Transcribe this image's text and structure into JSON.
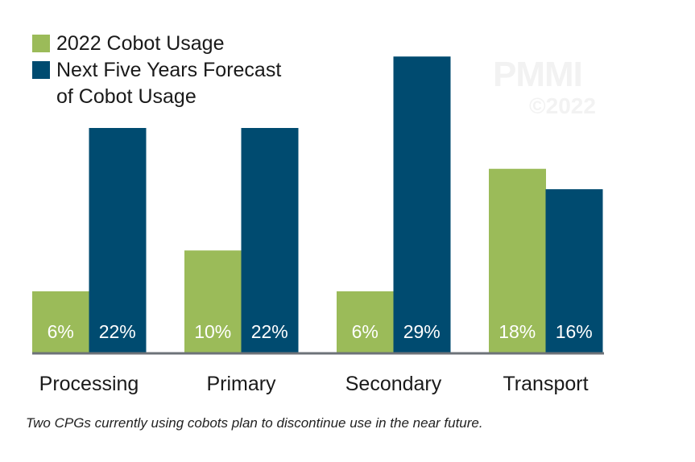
{
  "chart_data": {
    "type": "bar",
    "categories": [
      "Processing",
      "Primary",
      "Secondary",
      "Transport"
    ],
    "series": [
      {
        "name": "2022 Cobot Usage",
        "values": [
          6,
          10,
          6,
          18
        ],
        "color": "#9bbb59",
        "labels": [
          "6%",
          "10%",
          "6%",
          "18%"
        ]
      },
      {
        "name": "Next Five Years Forecast of Cobot Usage",
        "values": [
          22,
          22,
          29,
          16
        ],
        "color": "#004b70",
        "labels": [
          "22%",
          "22%",
          "29%",
          "16%"
        ]
      }
    ],
    "legend": {
      "items": [
        "2022 Cobot Usage",
        "Next Five Years Forecast",
        "of Cobot Usage"
      ],
      "placement": "top-left"
    },
    "ylim": [
      0,
      30
    ],
    "grid": false,
    "axis_color": "#6d7278"
  },
  "watermark": {
    "brand": "PMMI",
    "copyright": "©2022"
  },
  "footnote": "Two CPGs currently using cobots plan to discontinue use in the near future."
}
